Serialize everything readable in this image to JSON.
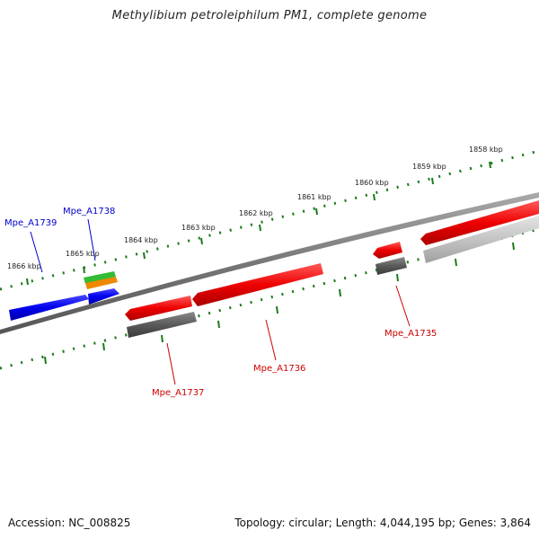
{
  "title": "Methylibium petroleiphilum PM1, complete genome",
  "accession_text": "Accession: NC_008825",
  "topology_text": "Topology: circular; Length: 4,044,195 bp; Genes: 3,864",
  "ruler_labels": [
    "1866 kbp",
    "1865 kbp",
    "1864 kbp",
    "1863 kbp",
    "1862 kbp",
    "1861 kbp",
    "1860 kbp",
    "1859 kbp",
    "1858 kbp"
  ],
  "genes": [
    {
      "name": "Mpe_A1739",
      "color": "#0000cc"
    },
    {
      "name": "Mpe_A1738",
      "color": "#0000cc"
    },
    {
      "name": "Mpe_A1737",
      "color": "#cc0000"
    },
    {
      "name": "Mpe_A1736",
      "color": "#cc0000"
    },
    {
      "name": "Mpe_A1735",
      "color": "#cc0000"
    }
  ],
  "colors": {
    "forward_gene": "#0000ee",
    "reverse_gene": "#ee0000",
    "cds_product": "#555555",
    "rna_green": "#33bb33",
    "rna_orange": "#ee8800",
    "backbone": "#777777",
    "ruler": "#1a7a1a"
  }
}
